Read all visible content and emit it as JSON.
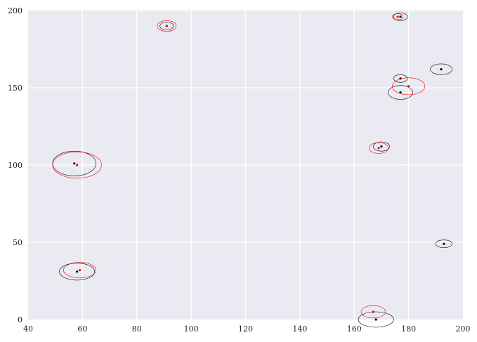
{
  "colors": {
    "background": "#eaeaf2",
    "grid": "#ffffff",
    "series_black": "#000000",
    "series_red": "#ff0000"
  },
  "chart_data": {
    "type": "scatter",
    "title": "",
    "xlabel": "",
    "ylabel": "",
    "xlim": [
      40,
      200
    ],
    "ylim": [
      0,
      200
    ],
    "x_ticks": [
      40,
      60,
      80,
      100,
      120,
      140,
      160,
      180,
      200
    ],
    "y_ticks": [
      0,
      50,
      100,
      150,
      200
    ],
    "grid": true,
    "legend": "none",
    "series": [
      {
        "color": "#000000",
        "points": [
          {
            "x": 57,
            "y": 101,
            "rx": 8.0,
            "ry": 8.0
          },
          {
            "x": 58,
            "y": 31,
            "rx": 6.5,
            "ry": 5.5
          },
          {
            "x": 91,
            "y": 190,
            "rx": 2.5,
            "ry": 2.5
          },
          {
            "x": 168,
            "y": 0,
            "rx": 6.5,
            "ry": 5.0
          },
          {
            "x": 170,
            "y": 112,
            "rx": 3.0,
            "ry": 3.0
          },
          {
            "x": 177,
            "y": 147,
            "rx": 4.5,
            "ry": 4.5
          },
          {
            "x": 177,
            "y": 156,
            "rx": 2.5,
            "ry": 2.5
          },
          {
            "x": 177,
            "y": 196,
            "rx": 2.5,
            "ry": 2.5
          },
          {
            "x": 192,
            "y": 162,
            "rx": 4.0,
            "ry": 3.5
          },
          {
            "x": 193,
            "y": 49,
            "rx": 3.0,
            "ry": 2.5
          }
        ]
      },
      {
        "color": "#ff0000",
        "points": [
          {
            "x": 58,
            "y": 100,
            "rx": 9.0,
            "ry": 8.5
          },
          {
            "x": 59,
            "y": 32,
            "rx": 6.0,
            "ry": 5.0
          },
          {
            "x": 91,
            "y": 190,
            "rx": 3.5,
            "ry": 3.5
          },
          {
            "x": 167,
            "y": 5,
            "rx": 4.5,
            "ry": 4.0
          },
          {
            "x": 169,
            "y": 111,
            "rx": 3.5,
            "ry": 3.5
          },
          {
            "x": 180,
            "y": 151,
            "rx": 6.0,
            "ry": 5.5
          },
          {
            "x": 176,
            "y": 196,
            "rx": 2.0,
            "ry": 2.0
          }
        ]
      }
    ]
  }
}
